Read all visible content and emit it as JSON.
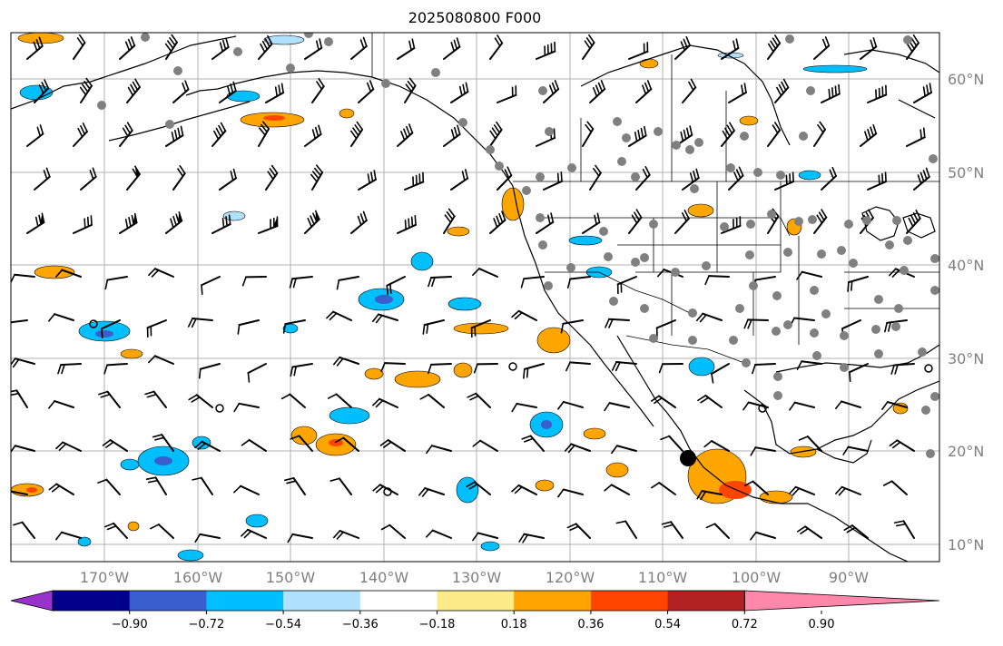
{
  "title": "2025080800 F000",
  "map": {
    "lon_ticks": [
      "170°W",
      "160°W",
      "150°W",
      "140°W",
      "130°W",
      "120°W",
      "110°W",
      "100°W",
      "90°W"
    ],
    "lat_ticks": [
      "60°N",
      "50°N",
      "40°N",
      "30°N",
      "20°N",
      "10°N"
    ],
    "extent": {
      "lon": [
        -180,
        -80
      ],
      "lat": [
        8,
        64
      ]
    }
  },
  "colorbar": {
    "ticks": [
      "−0.90",
      "−0.72",
      "−0.54",
      "−0.36",
      "−0.18",
      "0.18",
      "0.36",
      "0.54",
      "0.72",
      "0.90"
    ],
    "colors": [
      "#9932cc",
      "#00008b",
      "#3a5fcd",
      "#00bfff",
      "#b0e2ff",
      "#ffffff",
      "#fdeb8a",
      "#ffa500",
      "#ff4500",
      "#b22222",
      "#ff88aa"
    ]
  }
}
